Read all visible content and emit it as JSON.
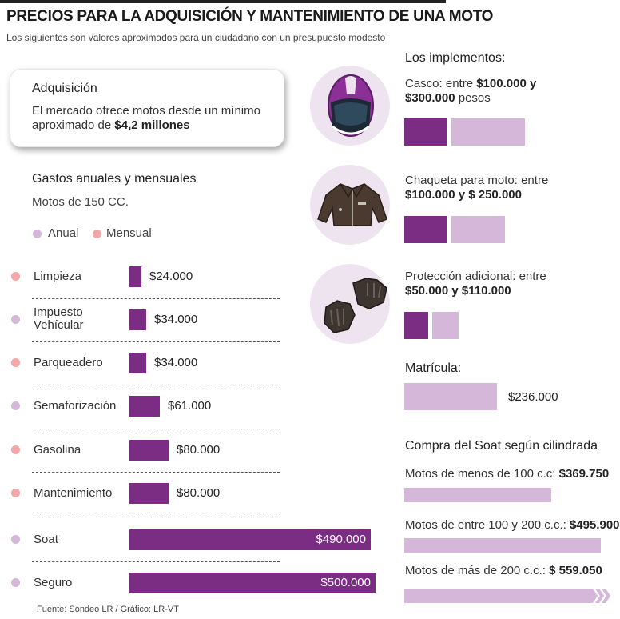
{
  "title": "PRECIOS PARA LA ADQUISICIÓN Y MANTENIMIENTO DE UNA MOTO",
  "subtitle": "Los siguientes son valores aproximados para un ciudadano con un presupuesto modesto",
  "acquisition": {
    "title": "Adquisición",
    "text": "El mercado ofrece motos desde un mínimo aproximado de",
    "highlight": "$4,2 millones"
  },
  "gastos": {
    "title": "Gastos anuales y mensuales",
    "subtitle": "Motos de 150 CC.",
    "legend": [
      {
        "label": "Anual",
        "color": "#d4b7d9"
      },
      {
        "label": "Mensual",
        "color": "#f0a8a8"
      }
    ]
  },
  "implements": {
    "title": "Los implementos:",
    "items": [
      {
        "line1": "Casco: entre ",
        "b1": "$100.000 y",
        "line2": "",
        "b2": "$300.000",
        "line2_tail": " pesos",
        "min": 100000,
        "max": 300000,
        "icon": "helmet-icon"
      },
      {
        "line1": "Chaqueta para moto: entre",
        "b1": "",
        "line2": "",
        "b2": "$100.000 y $ 250.000",
        "line2_tail": "",
        "min": 100000,
        "max": 250000,
        "icon": "jacket-icon"
      },
      {
        "line1": "Protección adicional: entre",
        "b1": "",
        "line2": "",
        "b2": "$50.000 y $110.000",
        "line2_tail": "",
        "min": 50000,
        "max": 110000,
        "icon": "gloves-icon"
      }
    ]
  },
  "matricula": {
    "title": "Matrícula:",
    "value": 236000,
    "label": "$236.000"
  },
  "soat_cilindrada": {
    "title": "Compra del Soat según cilindrada",
    "items": [
      {
        "label": "Motos de menos de 100 c.c: ",
        "value_label": "$369.750",
        "value": 369750
      },
      {
        "label": "Motos de entre 100 y 200 c.c.: ",
        "value_label": "$495.900",
        "value": 495900
      },
      {
        "label": "Motos de más de 200 c.c.: ",
        "value_label": "$ 559.050",
        "value": 559050
      }
    ]
  },
  "chart_data": {
    "type": "bar",
    "orientation": "horizontal",
    "categories": [
      "Limpieza",
      "Impuesto Vehícular",
      "Parqueadero",
      "Semaforización",
      "Gasolina",
      "Mantenimiento",
      "Soat",
      "Seguro"
    ],
    "values": [
      24000,
      34000,
      34000,
      61000,
      80000,
      80000,
      490000,
      500000
    ],
    "value_labels": [
      "$24.000",
      "$34.000",
      "$34.000",
      "$61.000",
      "$80.000",
      "$80.000",
      "$490.000",
      "$500.000"
    ],
    "period": [
      "Mensual",
      "Anual",
      "Mensual",
      "Anual",
      "Mensual",
      "Mensual",
      "Anual",
      "Anual"
    ],
    "legend_placement": "top-left",
    "grid": false
  },
  "colors": {
    "bar": "#7b2d84",
    "bar_light": "#d4b7d9",
    "anual": "#d4b7d9",
    "mensual": "#f0a8a8",
    "circle": "#eee4f0"
  },
  "footer": "Fuente: Sondeo LR / Gráfico: LR-VT"
}
